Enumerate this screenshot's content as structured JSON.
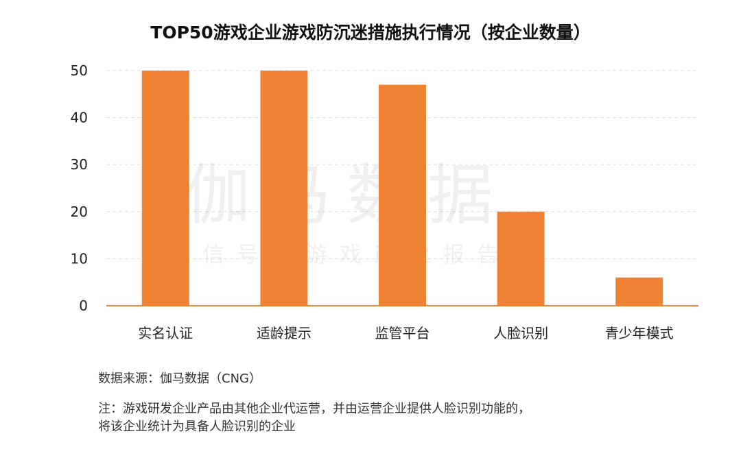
{
  "chart_data": {
    "type": "bar",
    "title": "TOP50游戏企业游戏防沉迷措施执行情况（按企业数量）",
    "categories": [
      "实名认证",
      "适龄提示",
      "监管平台",
      "人脸识别",
      "青少年模式"
    ],
    "values": [
      50,
      50,
      47,
      20,
      6
    ],
    "ylim": [
      0,
      50
    ],
    "yticks": [
      0,
      10,
      20,
      30,
      40,
      50
    ],
    "grid": true,
    "bar_color": "#F08233",
    "axis_color": "#F08233",
    "grid_color": "#dddddd"
  },
  "watermark": {
    "main": "伽马数据",
    "sub": "微信号：游戏产业报告"
  },
  "footer": {
    "source": "数据来源：伽马数据（CNG）",
    "note_line1": "注：游戏研发企业产品由其他企业代运营，并由运营企业提供人脸识别功能的，",
    "note_line2": "将该企业统计为具备人脸识别的企业"
  }
}
